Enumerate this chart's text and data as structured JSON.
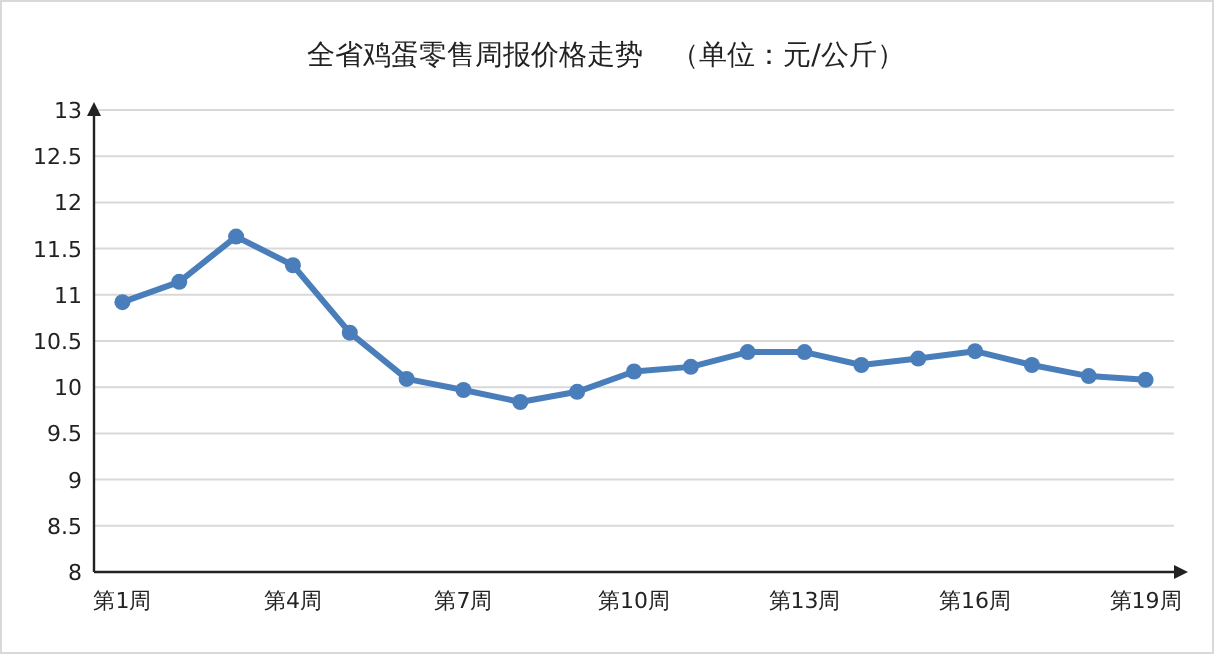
{
  "chart_data": {
    "type": "line",
    "title": "全省鸡蛋零售周报价格走势　（单位：元/公斤）",
    "categories": [
      "第1周",
      null,
      null,
      "第4周",
      null,
      null,
      "第7周",
      null,
      null,
      "第10周",
      null,
      null,
      "第13周",
      null,
      null,
      "第16周",
      null,
      null,
      "第19周"
    ],
    "values": [
      10.92,
      11.14,
      11.63,
      11.32,
      10.59,
      10.09,
      9.97,
      9.84,
      9.95,
      10.17,
      10.22,
      10.38,
      10.38,
      10.24,
      10.31,
      10.39,
      10.24,
      10.12,
      10.08
    ],
    "color": "#4a7ebb",
    "ylim": [
      8,
      13
    ],
    "yticks": [
      8,
      8.5,
      9,
      9.5,
      10,
      10.5,
      11,
      11.5,
      12,
      12.5,
      13
    ],
    "grid": "y",
    "marker": "circle",
    "line_style": "solid"
  }
}
